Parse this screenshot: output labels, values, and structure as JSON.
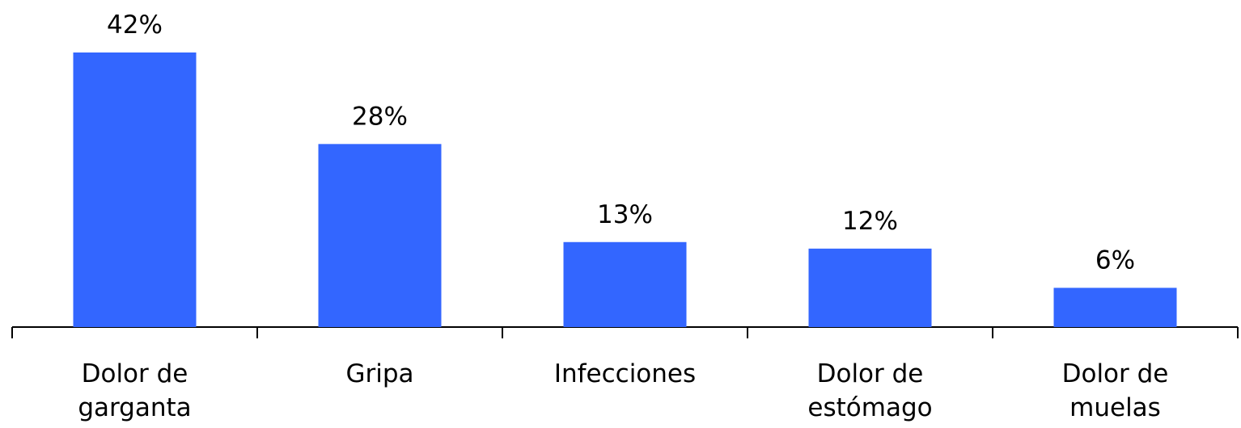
{
  "chart_data": {
    "type": "bar",
    "categories": [
      "Dolor de garganta",
      "Gripa",
      "Infecciones",
      "Dolor de estómago",
      "Dolor de muelas"
    ],
    "values": [
      42,
      28,
      13,
      12,
      6
    ],
    "value_labels": [
      "42%",
      "28%",
      "13%",
      "12%",
      "6%"
    ],
    "color": "#3366ff"
  }
}
